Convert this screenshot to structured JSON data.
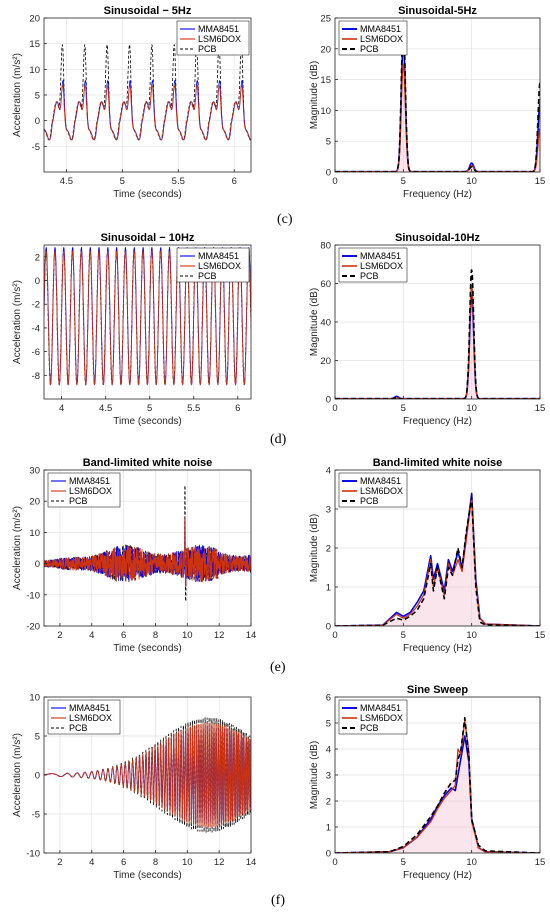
{
  "row_labels": [
    "(c)",
    "(d)",
    "(e)",
    "(f)"
  ],
  "colors": {
    "MMA8451": "#0000ee",
    "LSM6DOX": "#cc3311",
    "PCB": "#000000",
    "shade": "#f4c6d6"
  },
  "chart_data": [
    {
      "type": "line",
      "title": "Sinusoidal − 5Hz",
      "xlabel": "Time (seconds)",
      "ylabel": "Acceleration (m/s²)",
      "xlim": [
        4.3,
        6.15
      ],
      "ylim": [
        -10,
        20
      ],
      "xticks": [
        4.5,
        5,
        5.5,
        6
      ],
      "yticks": [
        -5,
        0,
        5,
        10,
        15,
        20
      ],
      "legend": [
        "MMA8451",
        "LSM6DOX",
        "PCB"
      ],
      "legend_position": "top-right",
      "grid": true,
      "signal": {
        "kind": "sine",
        "freq_hz": 5,
        "peak": {
          "MMA8451": 10.5,
          "LSM6DOX": 9.5,
          "PCB": 17.5
        },
        "trough": -8
      }
    },
    {
      "type": "line",
      "title": "Sinusoidal-5Hz",
      "xlabel": "Frequency (Hz)",
      "ylabel": "Magnitude (dB)",
      "xlim": [
        0,
        15
      ],
      "ylim": [
        0,
        25
      ],
      "xticks": [
        0,
        5,
        10,
        15
      ],
      "yticks": [
        0,
        5,
        10,
        15,
        20,
        25
      ],
      "legend": [
        "MMA8451",
        "LSM6DOX",
        "PCB"
      ],
      "legend_position": "top-left",
      "grid": true,
      "peaks": [
        {
          "f": 5,
          "MMA8451": 21,
          "LSM6DOX": 17.5,
          "PCB": 24
        },
        {
          "f": 10,
          "MMA8451": 1.4,
          "LSM6DOX": 1,
          "PCB": 0.8
        },
        {
          "f": 15,
          "MMA8451": 11,
          "LSM6DOX": 7,
          "PCB": 14.5
        }
      ],
      "width": 0.35
    },
    {
      "type": "line",
      "title": "Sinusoidal − 10Hz",
      "xlabel": "Time (seconds)",
      "ylabel": "Acceleration (m/s²)",
      "xlim": [
        3.8,
        6.15
      ],
      "ylim": [
        -10,
        3
      ],
      "xticks": [
        4,
        4.5,
        5,
        5.5,
        6
      ],
      "yticks": [
        -8,
        -6,
        -4,
        -2,
        0,
        2
      ],
      "legend": [
        "MMA8451",
        "LSM6DOX",
        "PCB"
      ],
      "legend_position": "top-right",
      "grid": true,
      "signal": {
        "kind": "sine",
        "freq_hz": 10,
        "peak": {
          "MMA8451": 2.8,
          "LSM6DOX": 2.5,
          "PCB": 2.6
        },
        "trough": -8.8
      }
    },
    {
      "type": "line",
      "title": "Sinusoidal-10Hz",
      "xlabel": "Frequency (Hz)",
      "ylabel": "Magnitude (dB)",
      "xlim": [
        0,
        15
      ],
      "ylim": [
        0,
        80
      ],
      "xticks": [
        0,
        5,
        10,
        15
      ],
      "yticks": [
        0,
        20,
        40,
        60,
        80
      ],
      "legend": [
        "MMA8451",
        "LSM6DOX",
        "PCB"
      ],
      "legend_position": "top-left",
      "grid": true,
      "peaks": [
        {
          "f": 10,
          "MMA8451": 54,
          "LSM6DOX": 59,
          "PCB": 67
        },
        {
          "f": 4.5,
          "MMA8451": 1.2,
          "LSM6DOX": 0.5,
          "PCB": 0.4
        }
      ],
      "width": 0.35
    },
    {
      "type": "line",
      "title": "Band-limited white noise",
      "xlabel": "Time (seconds)",
      "ylabel": "Acceleration (m/s²)",
      "xlim": [
        1,
        14
      ],
      "ylim": [
        -20,
        30
      ],
      "xticks": [
        2,
        4,
        6,
        8,
        10,
        12,
        14
      ],
      "yticks": [
        -20,
        -10,
        0,
        10,
        20,
        30
      ],
      "legend": [
        "MMA8451",
        "LSM6DOX",
        "PCB"
      ],
      "legend_position": "top-left",
      "grid": true,
      "signal": {
        "kind": "noise",
        "amp": 6,
        "spike_t": 9.85,
        "spike_max": 25,
        "spike_min": -12
      }
    },
    {
      "type": "line",
      "title": "Band-limited white noise",
      "xlabel": "Frequency (Hz)",
      "ylabel": "Magnitude (dB)",
      "xlim": [
        0,
        15
      ],
      "ylim": [
        0,
        4
      ],
      "xticks": [
        0,
        5,
        10,
        15
      ],
      "yticks": [
        0,
        1,
        2,
        3,
        4
      ],
      "legend": [
        "MMA8451",
        "LSM6DOX",
        "PCB"
      ],
      "legend_position": "top-left",
      "grid": true,
      "spectrum": {
        "f": [
          0,
          3.5,
          4.5,
          5,
          5.5,
          6,
          6.5,
          7,
          7.2,
          7.5,
          8,
          8.3,
          8.6,
          9,
          9.3,
          9.6,
          10,
          10.3,
          10.6,
          11,
          15
        ],
        "MMA8451": [
          0,
          0.02,
          0.35,
          0.25,
          0.35,
          0.6,
          0.9,
          1.8,
          1.2,
          1.6,
          0.9,
          1.7,
          1.4,
          1.9,
          1.5,
          2.3,
          3.4,
          1.2,
          0.2,
          0.05,
          0
        ],
        "LSM6DOX": [
          0,
          0.02,
          0.3,
          0.2,
          0.3,
          0.5,
          0.8,
          1.7,
          1.0,
          1.5,
          0.8,
          1.6,
          1.3,
          1.7,
          1.4,
          2.2,
          3.3,
          1.1,
          0.2,
          0.05,
          0
        ],
        "PCB": [
          0,
          0.02,
          0.2,
          0.15,
          0.25,
          0.4,
          0.7,
          1.6,
          0.9,
          1.5,
          0.7,
          1.5,
          1.3,
          2.0,
          1.5,
          2.4,
          3.3,
          1.0,
          0.1,
          0.03,
          0
        ]
      }
    },
    {
      "type": "line",
      "title": "",
      "xlabel": "Time (seconds)",
      "ylabel": "Acceleration (m/s²)",
      "xlim": [
        1,
        14
      ],
      "ylim": [
        -10,
        10
      ],
      "xticks": [
        2,
        4,
        6,
        8,
        10,
        12,
        14
      ],
      "yticks": [
        -10,
        -5,
        0,
        5,
        10
      ],
      "legend": [
        "MMA8451",
        "LSM6DOX",
        "PCB"
      ],
      "legend_position": "top-left",
      "grid": true,
      "signal": {
        "kind": "sweep",
        "f0": 0.3,
        "f1": 10,
        "peak_t": 11.3,
        "amp": {
          "MMA8451": 6.5,
          "LSM6DOX": 6.9,
          "PCB": 7.6
        }
      }
    },
    {
      "type": "line",
      "title": "Sine Sweep",
      "xlabel": "Frequency (Hz)",
      "ylabel": "Magnitude (dB)",
      "xlim": [
        0,
        15
      ],
      "ylim": [
        0,
        6
      ],
      "xticks": [
        0,
        5,
        10,
        15
      ],
      "yticks": [
        0,
        1,
        2,
        3,
        4,
        5,
        6
      ],
      "legend": [
        "MMA8451",
        "LSM6DOX",
        "PCB"
      ],
      "legend_position": "top-left",
      "grid": true,
      "spectrum": {
        "f": [
          0,
          4,
          5,
          6,
          7,
          7.5,
          8,
          8.5,
          8.8,
          9,
          9.2,
          9.5,
          9.8,
          10,
          10.5,
          11,
          15
        ],
        "MMA8451": [
          0,
          0.05,
          0.2,
          0.6,
          1.3,
          1.8,
          2.2,
          2.5,
          2.4,
          3.0,
          3.6,
          4.5,
          3.5,
          1.3,
          0.2,
          0.05,
          0
        ],
        "LSM6DOX": [
          0,
          0.05,
          0.2,
          0.6,
          1.2,
          1.7,
          2.1,
          2.4,
          2.6,
          4.0,
          3.8,
          5.1,
          3.9,
          1.2,
          0.2,
          0.05,
          0
        ],
        "PCB": [
          0,
          0.05,
          0.25,
          0.7,
          1.4,
          1.8,
          2.3,
          2.7,
          2.8,
          3.6,
          3.9,
          5.2,
          3.7,
          1.3,
          0.3,
          0.08,
          0
        ]
      }
    }
  ]
}
